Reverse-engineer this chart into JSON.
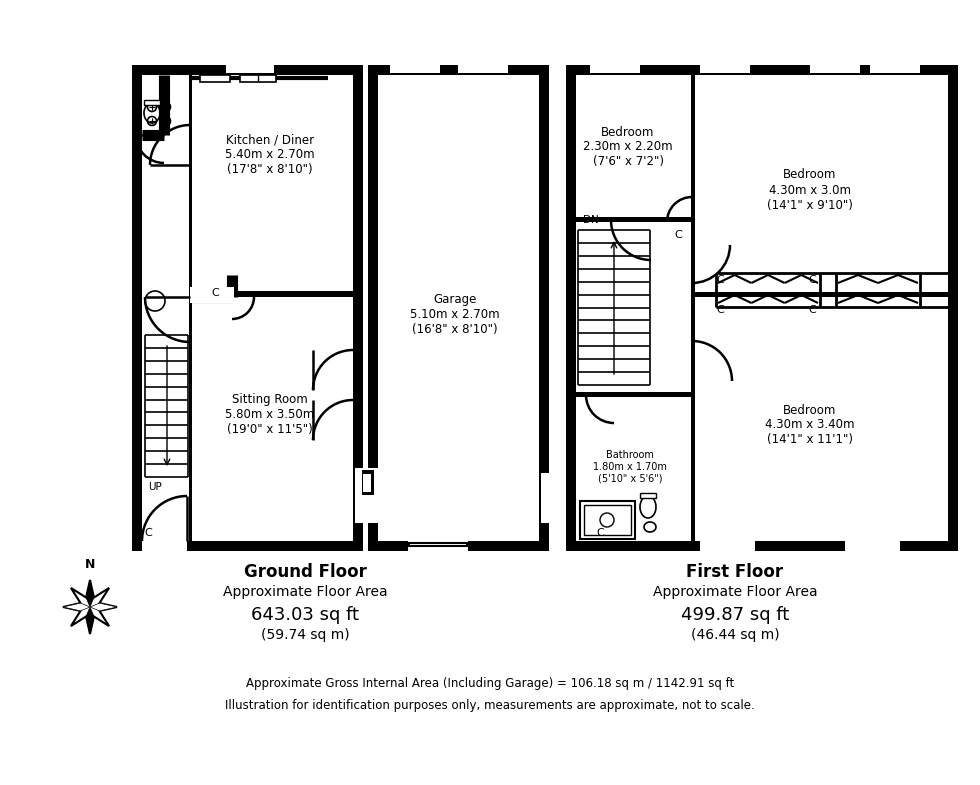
{
  "bg": "#ffffff",
  "gf_label": "Ground Floor",
  "gf_area1": "Approximate Floor Area",
  "gf_area2": "643.03 sq ft",
  "gf_area3": "(59.74 sq m)",
  "ff_label": "First Floor",
  "ff_area1": "Approximate Floor Area",
  "ff_area2": "499.87 sq ft",
  "ff_area3": "(46.44 sq m)",
  "gross": "Approximate Gross Internal Area (Including Garage) = 106.18 sq m / 1142.91 sq ft",
  "disclaimer": "Illustration for identification purposes only, measurements are approximate, not to scale.",
  "kitchen_lbl": "Kitchen / Diner\n5.40m x 2.70m\n(17'8\" x 8'10\")",
  "garage_lbl": "Garage\n5.10m x 2.70m\n(16'8\" x 8'10\")",
  "sitting_lbl": "Sitting Room\n5.80m x 3.50m\n(19'0\" x 11'5\")",
  "bed1_lbl": "Bedroom\n2.30m x 2.20m\n(7'6\" x 7'2\")",
  "bed2_lbl": "Bedroom\n4.30m x 3.0m\n(14'1\" x 9'10\")",
  "bed3_lbl": "Bedroom\n4.30m x 3.40m\n(14'1\" x 11'1\")",
  "bath_lbl": "Bathroom\n1.80m x 1.70m\n(5'10\" x 5'6\")"
}
